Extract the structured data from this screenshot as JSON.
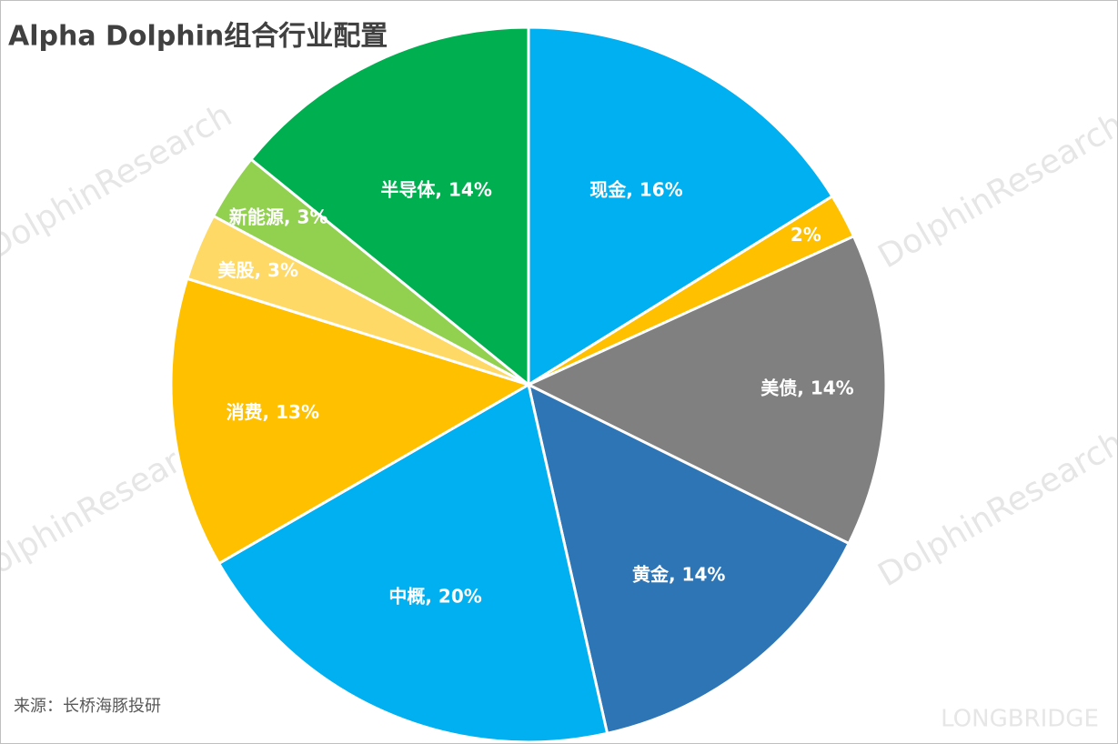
{
  "chart_data": {
    "type": "pie",
    "title": "Alpha Dolphin组合行业配置",
    "source": "来源：长桥海豚投研",
    "values": [
      16,
      2,
      14,
      14,
      20,
      13,
      3,
      3,
      14
    ],
    "value_labels": [
      "现金, 16%",
      "2%",
      "美债, 14%",
      "黄金, 14%",
      "中概, 20%",
      "消费, 13%",
      "美股, 3%",
      "新能源, 3%",
      "半导体, 14%"
    ],
    "colors": [
      "#00b0f0",
      "#ffc000",
      "#808080",
      "#2e75b6",
      "#00b0f0",
      "#ffc000",
      "#ffd966",
      "#92d050",
      "#00b050"
    ],
    "watermark": [
      "DolphinResearch",
      "LONGBRIDGE"
    ]
  }
}
